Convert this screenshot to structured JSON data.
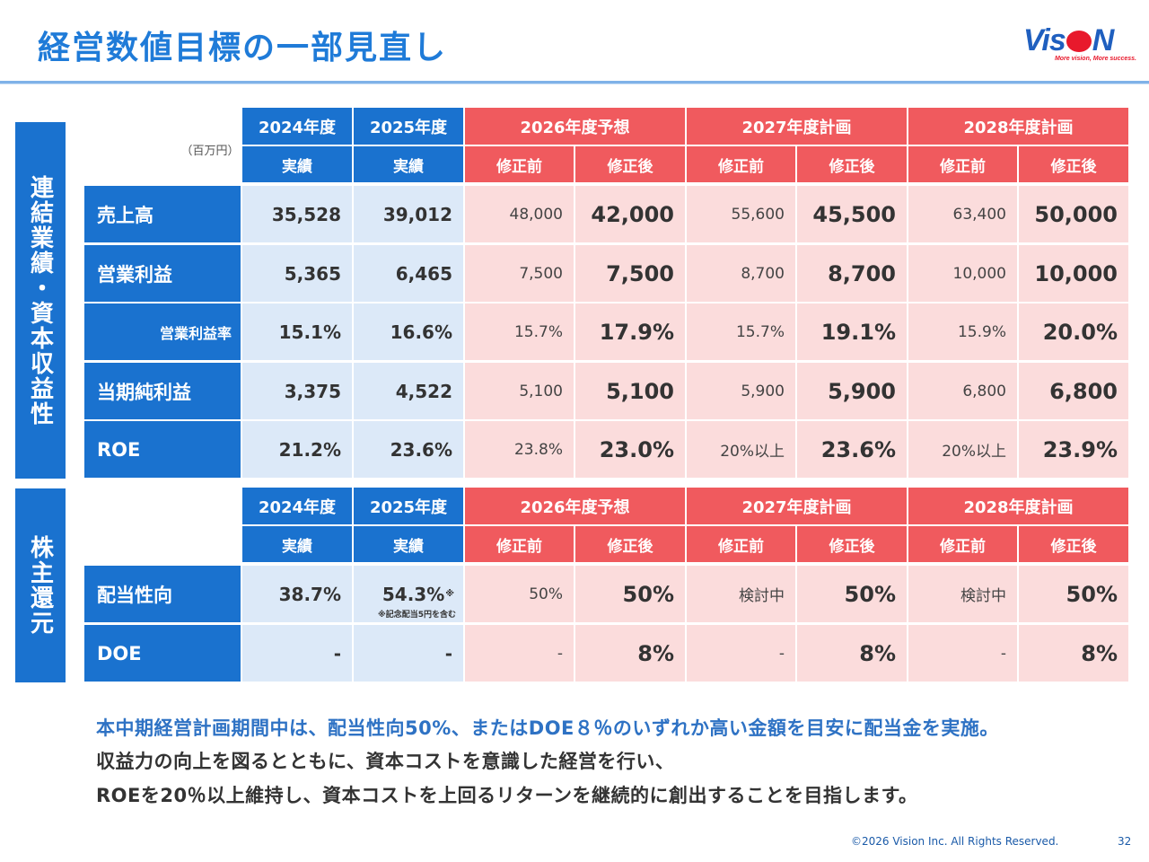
{
  "title": "経営数値目標の一部見直し",
  "logo": {
    "text_before": "Vis",
    "text_after": "N",
    "tagline": "More vision, More success."
  },
  "colors": {
    "blue": "#1a72cf",
    "red": "#f05a5e",
    "light_blue": "#dce9f8",
    "light_red": "#fbdcdc"
  },
  "section1": {
    "side_label": "連結業績・資本収益性",
    "unit": "（百万円）",
    "year_headers": [
      "2024年度",
      "2025年度",
      "2026年度予想",
      "2027年度計画",
      "2028年度計画"
    ],
    "sub_headers": [
      "実績",
      "実績",
      "修正前",
      "修正後",
      "修正前",
      "修正後",
      "修正前",
      "修正後"
    ],
    "rows": [
      {
        "label": "売上高",
        "values": [
          "35,528",
          "39,012",
          "48,000",
          "42,000",
          "55,600",
          "45,500",
          "63,400",
          "50,000"
        ]
      },
      {
        "label": "営業利益",
        "values": [
          "5,365",
          "6,465",
          "7,500",
          "7,500",
          "8,700",
          "8,700",
          "10,000",
          "10,000"
        ]
      },
      {
        "label": "営業利益率",
        "values": [
          "15.1%",
          "16.6%",
          "15.7%",
          "17.9%",
          "15.7%",
          "19.1%",
          "15.9%",
          "20.0%"
        ]
      },
      {
        "label": "当期純利益",
        "values": [
          "3,375",
          "4,522",
          "5,100",
          "5,100",
          "5,900",
          "5,900",
          "6,800",
          "6,800"
        ]
      },
      {
        "label": "ROE",
        "values": [
          "21.2%",
          "23.6%",
          "23.8%",
          "23.0%",
          "20%以上",
          "23.6%",
          "20%以上",
          "23.9%"
        ]
      }
    ]
  },
  "section2": {
    "side_label": "株主還元",
    "year_headers": [
      "2024年度",
      "2025年度",
      "2026年度予想",
      "2027年度計画",
      "2028年度計画"
    ],
    "sub_headers": [
      "実績",
      "実績",
      "修正前",
      "修正後",
      "修正前",
      "修正後",
      "修正前",
      "修正後"
    ],
    "rows": [
      {
        "label": "配当性向",
        "values": [
          "38.7%",
          "54.3%",
          "50%",
          "50%",
          "検討中",
          "50%",
          "検討中",
          "50%"
        ]
      },
      {
        "label": "DOE",
        "values": [
          "-",
          "-",
          "-",
          "8%",
          "-",
          "8%",
          "-",
          "8%"
        ]
      }
    ],
    "footnote_mark": "※",
    "footnote": "※記念配当5円を含む"
  },
  "message": {
    "line1": "本中期経営計画期間中は、配当性向50%、またはDOE８％のいずれか高い金額を目安に配当金を実施。",
    "line2": "収益力の向上を図るとともに、資本コストを意識した経営を行い、",
    "line3": "ROEを20％以上維持し、資本コストを上回るリターンを継続的に創出することを目指します。"
  },
  "footer": {
    "copyright": "©2026 Vision Inc. All Rights Reserved.",
    "page": "32"
  }
}
